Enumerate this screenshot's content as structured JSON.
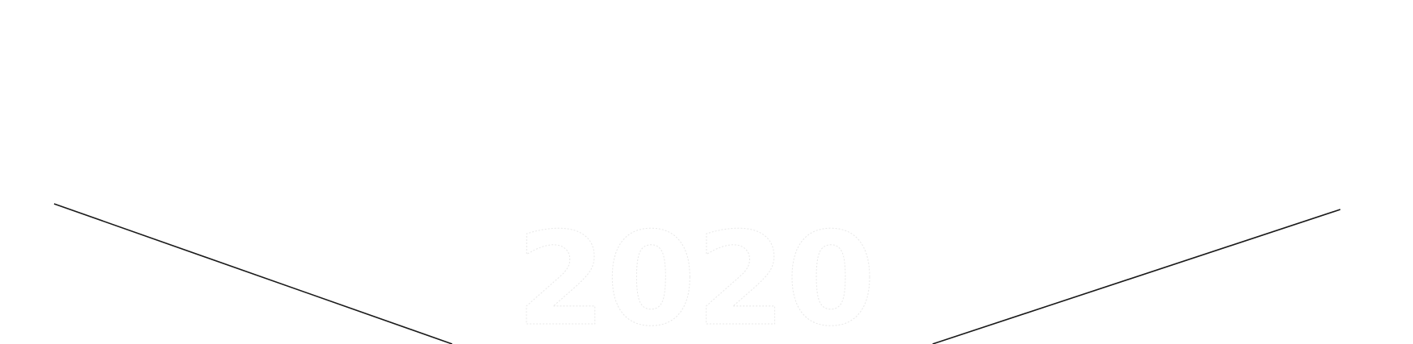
{
  "heading": {
    "year": "2020",
    "fill_color": "#ffffff",
    "outline_color": "#e8e8e8"
  },
  "decoration": {
    "line_color": "#1a1a1a"
  }
}
